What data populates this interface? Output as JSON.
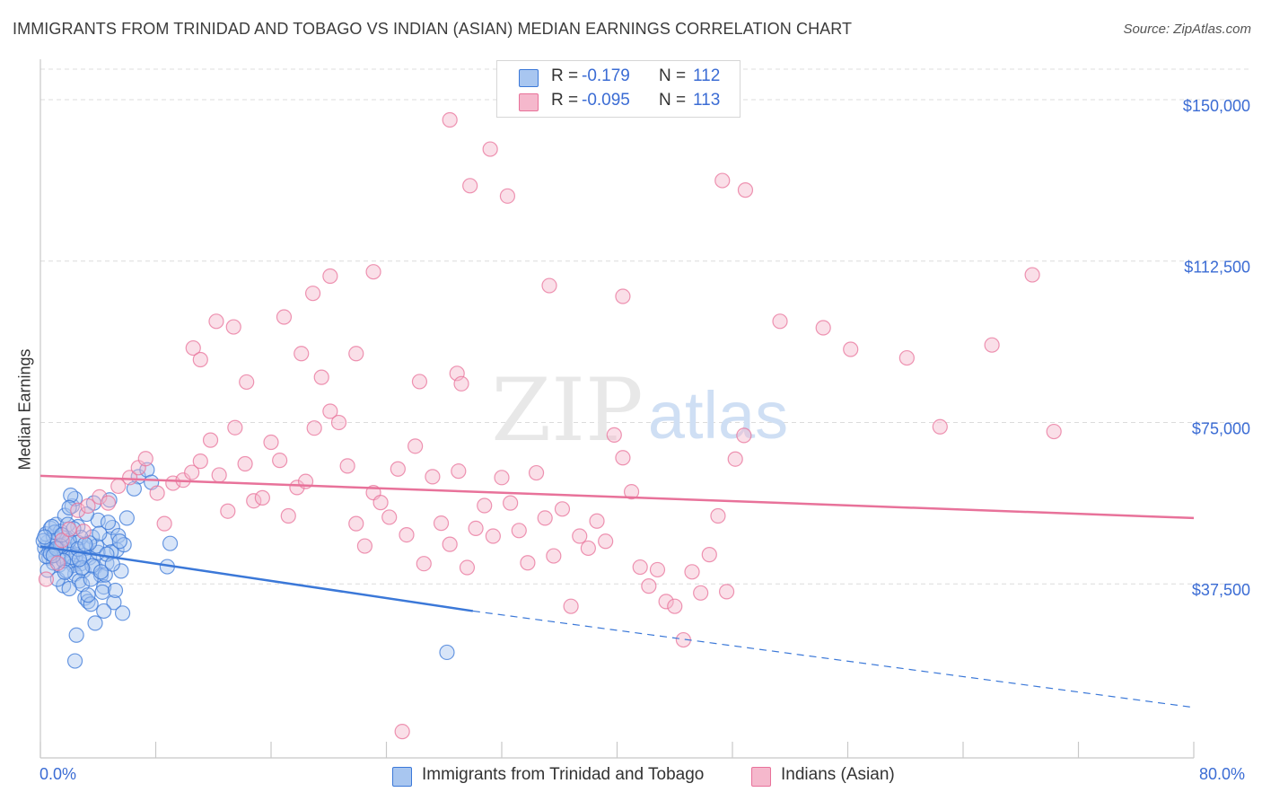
{
  "header": {
    "title": "IMMIGRANTS FROM TRINIDAD AND TOBAGO VS INDIAN (ASIAN) MEDIAN EARNINGS CORRELATION CHART",
    "source": "Source: ZipAtlas.com"
  },
  "stats": {
    "rows": [
      {
        "r_label": "R =",
        "r_value": "-0.179",
        "n_label": "N =",
        "n_value": "112",
        "color": "#a8c6f0"
      },
      {
        "r_label": "R =",
        "r_value": "-0.095",
        "n_label": "N =",
        "n_value": "113",
        "color": "#f5b8cc"
      }
    ]
  },
  "legend": {
    "items": [
      {
        "label": "Immigrants from Trinidad and Tobago",
        "color": "#a8c6f0"
      },
      {
        "label": "Indians (Asian)",
        "color": "#f5b8cc"
      }
    ]
  },
  "watermark": {
    "zip": "ZIP",
    "atlas": "atlas"
  },
  "chart_data": {
    "type": "scatter",
    "title": "IMMIGRANTS FROM TRINIDAD AND TOBAGO VS INDIAN (ASIAN) MEDIAN EARNINGS CORRELATION CHART",
    "xlabel": "",
    "ylabel": "Median Earnings",
    "xlim": [
      0,
      80
    ],
    "ylim": [
      0,
      157500
    ],
    "x_tick_labels": [
      "0.0%",
      "80.0%"
    ],
    "y_ticks": [
      37500,
      75000,
      112500,
      150000
    ],
    "y_tick_labels": [
      "$37,500",
      "$75,000",
      "$112,500",
      "$150,000"
    ],
    "grid": true,
    "legend_position": "bottom",
    "colors": {
      "blue": "#3b78d8",
      "pink": "#e8729a",
      "blue_fill": "#a8c6f0",
      "pink_fill": "#f5b8cc",
      "axis_text": "#3b6cd4"
    },
    "series": [
      {
        "name": "Immigrants from Trinidad and Tobago",
        "color": "#3b78d8",
        "trend": {
          "x": [
            0,
            30
          ],
          "y": [
            46200,
            31200
          ],
          "dashed_to": {
            "x": 80,
            "y": 8800
          }
        },
        "points": [
          [
            0.3,
            45800
          ],
          [
            0.5,
            47200
          ],
          [
            0.6,
            44900
          ],
          [
            0.4,
            49100
          ],
          [
            0.8,
            46300
          ],
          [
            0.9,
            48500
          ],
          [
            1.0,
            45100
          ],
          [
            1.2,
            47800
          ],
          [
            1.3,
            44000
          ],
          [
            0.7,
            50400
          ],
          [
            1.5,
            46600
          ],
          [
            1.6,
            43700
          ],
          [
            1.8,
            48200
          ],
          [
            2.0,
            45400
          ],
          [
            2.1,
            42800
          ],
          [
            1.1,
            51300
          ],
          [
            0.2,
            47500
          ],
          [
            0.6,
            43600
          ],
          [
            1.4,
            49700
          ],
          [
            1.9,
            46900
          ],
          [
            2.3,
            41800
          ],
          [
            2.5,
            44300
          ],
          [
            2.6,
            47100
          ],
          [
            2.8,
            42200
          ],
          [
            3.0,
            40600
          ],
          [
            3.2,
            45800
          ],
          [
            1.7,
            53400
          ],
          [
            2.2,
            55600
          ],
          [
            2.4,
            39800
          ],
          [
            2.7,
            38200
          ],
          [
            3.4,
            43600
          ],
          [
            3.6,
            48400
          ],
          [
            3.8,
            41400
          ],
          [
            4.0,
            44800
          ],
          [
            4.2,
            39500
          ],
          [
            4.4,
            36800
          ],
          [
            2.9,
            37400
          ],
          [
            3.1,
            34200
          ],
          [
            3.3,
            33400
          ],
          [
            3.5,
            32800
          ],
          [
            1.6,
            37100
          ],
          [
            2.0,
            36400
          ],
          [
            4.6,
            42300
          ],
          [
            4.8,
            47900
          ],
          [
            5.0,
            50600
          ],
          [
            5.3,
            45400
          ],
          [
            5.6,
            40500
          ],
          [
            4.0,
            52300
          ],
          [
            3.7,
            56300
          ],
          [
            2.4,
            57300
          ],
          [
            2.6,
            50800
          ],
          [
            1.3,
            41900
          ],
          [
            0.9,
            42400
          ],
          [
            0.5,
            40700
          ],
          [
            1.2,
            38600
          ],
          [
            3.9,
            46300
          ],
          [
            4.5,
            39600
          ],
          [
            4.9,
            44900
          ],
          [
            5.4,
            48700
          ],
          [
            6.0,
            52800
          ],
          [
            5.8,
            46600
          ],
          [
            5.1,
            33200
          ],
          [
            4.3,
            35600
          ],
          [
            2.2,
            43700
          ],
          [
            2.8,
            48300
          ],
          [
            3.0,
            44100
          ],
          [
            1.0,
            49500
          ],
          [
            0.8,
            50800
          ],
          [
            0.4,
            43900
          ],
          [
            1.8,
            40600
          ],
          [
            3.6,
            41700
          ],
          [
            2.0,
            47600
          ],
          [
            6.8,
            62400
          ],
          [
            7.4,
            64000
          ],
          [
            7.7,
            61100
          ],
          [
            6.5,
            59600
          ],
          [
            9.0,
            46900
          ],
          [
            8.8,
            41500
          ],
          [
            3.8,
            28400
          ],
          [
            2.5,
            25600
          ],
          [
            2.4,
            19600
          ],
          [
            28.2,
            21600
          ],
          [
            4.4,
            31200
          ],
          [
            3.3,
            34900
          ],
          [
            5.2,
            36000
          ],
          [
            5.7,
            30700
          ],
          [
            1.6,
            42900
          ],
          [
            2.9,
            41200
          ],
          [
            4.1,
            49200
          ],
          [
            4.7,
            51800
          ],
          [
            3.2,
            53700
          ],
          [
            2.1,
            58100
          ],
          [
            1.4,
            46300
          ],
          [
            0.7,
            44500
          ],
          [
            0.3,
            48400
          ],
          [
            2.6,
            45600
          ],
          [
            3.4,
            47000
          ],
          [
            4.6,
            44400
          ],
          [
            5.0,
            42100
          ],
          [
            1.9,
            51300
          ],
          [
            1.1,
            45700
          ],
          [
            2.3,
            50300
          ],
          [
            3.5,
            38600
          ],
          [
            4.2,
            40300
          ],
          [
            5.5,
            47400
          ],
          [
            2.7,
            43200
          ],
          [
            1.5,
            48900
          ],
          [
            0.9,
            44100
          ],
          [
            3.1,
            46700
          ],
          [
            1.7,
            40200
          ],
          [
            2.0,
            55200
          ],
          [
            4.8,
            57000
          ]
        ]
      },
      {
        "name": "Indians (Asian)",
        "color": "#e8729a",
        "trend": {
          "x": [
            0,
            80
          ],
          "y": [
            62600,
            52800
          ]
        },
        "points": [
          [
            0.4,
            38600
          ],
          [
            1.2,
            42300
          ],
          [
            1.5,
            47600
          ],
          [
            2.0,
            50200
          ],
          [
            2.6,
            54600
          ],
          [
            3.0,
            49700
          ],
          [
            3.3,
            55600
          ],
          [
            4.1,
            57700
          ],
          [
            4.7,
            56300
          ],
          [
            5.4,
            60200
          ],
          [
            6.2,
            62200
          ],
          [
            6.8,
            64500
          ],
          [
            7.3,
            66600
          ],
          [
            8.1,
            58600
          ],
          [
            8.6,
            51500
          ],
          [
            9.2,
            60900
          ],
          [
            9.9,
            61600
          ],
          [
            10.5,
            63400
          ],
          [
            11.1,
            66000
          ],
          [
            11.8,
            70900
          ],
          [
            12.4,
            62800
          ],
          [
            13.0,
            54400
          ],
          [
            13.5,
            73800
          ],
          [
            14.2,
            65400
          ],
          [
            14.8,
            56800
          ],
          [
            15.4,
            57500
          ],
          [
            16.0,
            70400
          ],
          [
            16.6,
            66200
          ],
          [
            17.2,
            53300
          ],
          [
            17.8,
            59900
          ],
          [
            18.4,
            61300
          ],
          [
            19.0,
            73700
          ],
          [
            19.5,
            85500
          ],
          [
            20.1,
            77600
          ],
          [
            20.7,
            75000
          ],
          [
            21.3,
            64900
          ],
          [
            21.9,
            51500
          ],
          [
            22.5,
            46300
          ],
          [
            23.1,
            58700
          ],
          [
            23.6,
            56400
          ],
          [
            24.2,
            53000
          ],
          [
            24.8,
            64200
          ],
          [
            25.4,
            48900
          ],
          [
            26.0,
            69500
          ],
          [
            26.6,
            42200
          ],
          [
            27.2,
            62400
          ],
          [
            27.8,
            51600
          ],
          [
            28.4,
            46700
          ],
          [
            29.0,
            63700
          ],
          [
            29.6,
            41300
          ],
          [
            30.2,
            50400
          ],
          [
            30.8,
            55700
          ],
          [
            31.4,
            48600
          ],
          [
            32.0,
            62200
          ],
          [
            32.6,
            56300
          ],
          [
            33.2,
            49900
          ],
          [
            33.8,
            42400
          ],
          [
            34.4,
            63300
          ],
          [
            35.0,
            52800
          ],
          [
            35.6,
            44000
          ],
          [
            36.2,
            54900
          ],
          [
            36.8,
            32300
          ],
          [
            37.4,
            48600
          ],
          [
            38.0,
            45800
          ],
          [
            38.6,
            52100
          ],
          [
            39.2,
            47400
          ],
          [
            39.8,
            72100
          ],
          [
            40.4,
            66800
          ],
          [
            41.0,
            58900
          ],
          [
            41.6,
            41400
          ],
          [
            42.2,
            37000
          ],
          [
            42.8,
            40800
          ],
          [
            43.4,
            33400
          ],
          [
            44.0,
            32300
          ],
          [
            44.6,
            24500
          ],
          [
            45.2,
            40300
          ],
          [
            45.8,
            35400
          ],
          [
            46.4,
            44300
          ],
          [
            47.0,
            53300
          ],
          [
            47.6,
            35700
          ],
          [
            48.2,
            66500
          ],
          [
            48.8,
            72000
          ],
          [
            16.9,
            99500
          ],
          [
            18.9,
            105000
          ],
          [
            20.1,
            109000
          ],
          [
            23.1,
            110000
          ],
          [
            21.9,
            91000
          ],
          [
            26.3,
            84500
          ],
          [
            28.9,
            86400
          ],
          [
            29.2,
            84000
          ],
          [
            14.3,
            84400
          ],
          [
            10.6,
            92300
          ],
          [
            13.4,
            97200
          ],
          [
            12.2,
            98500
          ],
          [
            11.1,
            89600
          ],
          [
            18.1,
            91000
          ],
          [
            28.4,
            145300
          ],
          [
            29.8,
            130000
          ],
          [
            31.2,
            138500
          ],
          [
            32.4,
            127600
          ],
          [
            35.3,
            106800
          ],
          [
            40.4,
            104300
          ],
          [
            47.3,
            131200
          ],
          [
            48.9,
            129000
          ],
          [
            68.8,
            109300
          ],
          [
            51.3,
            98500
          ],
          [
            54.3,
            97000
          ],
          [
            56.2,
            92000
          ],
          [
            60.1,
            90000
          ],
          [
            62.4,
            74000
          ],
          [
            66.0,
            93000
          ],
          [
            70.3,
            72900
          ],
          [
            25.1,
            3200
          ]
        ]
      }
    ]
  }
}
